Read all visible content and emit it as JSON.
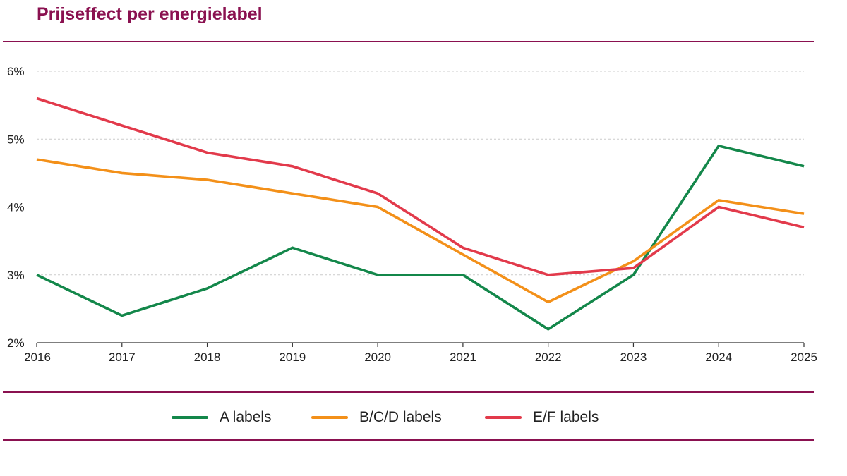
{
  "chart_data": {
    "type": "line",
    "title": "Prijseffect per energielabel",
    "xlabel": "",
    "ylabel": "",
    "x": [
      "2016",
      "2017",
      "2018",
      "2019",
      "2020",
      "2021",
      "2022",
      "2023",
      "2024",
      "2025"
    ],
    "ylim": [
      2,
      6
    ],
    "y_ticks": [
      "2%",
      "3%",
      "4%",
      "5%",
      "6%"
    ],
    "y_tick_values": [
      2,
      3,
      4,
      5,
      6
    ],
    "grid": "horizontal dashed",
    "legend_placement": "bottom",
    "series": [
      {
        "name": "A labels",
        "color": "#13874a",
        "values": [
          3.0,
          2.4,
          2.8,
          3.4,
          3.0,
          3.0,
          2.2,
          3.0,
          4.9,
          4.6
        ]
      },
      {
        "name": "B/C/D labels",
        "color": "#f39019",
        "values": [
          4.7,
          4.5,
          4.4,
          4.2,
          4.0,
          3.3,
          2.6,
          3.2,
          4.1,
          3.9
        ]
      },
      {
        "name": "E/F labels",
        "color": "#e23a4b",
        "values": [
          5.6,
          5.2,
          4.8,
          4.6,
          4.2,
          3.4,
          3.0,
          3.1,
          4.0,
          3.7
        ]
      }
    ]
  },
  "colors": {
    "accent": "#8a1150",
    "grid": "#cccccc",
    "axis": "#333333"
  }
}
